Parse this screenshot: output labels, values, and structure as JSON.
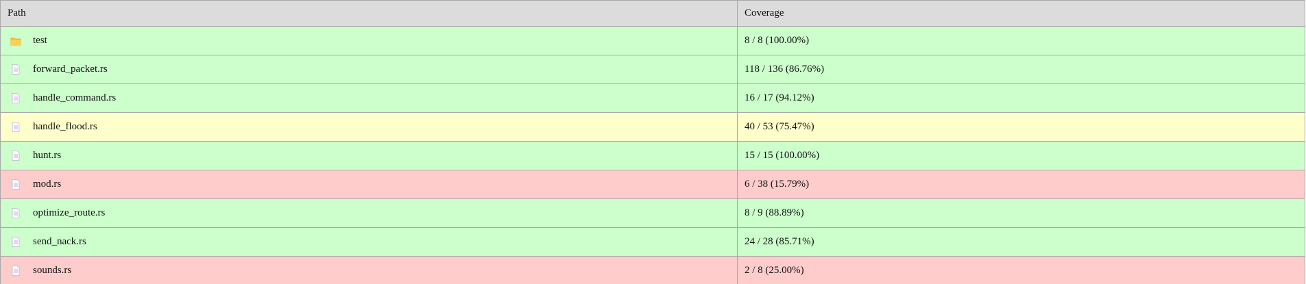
{
  "header": {
    "path_label": "Path",
    "coverage_label": "Coverage"
  },
  "colors": {
    "header_bg": "#dcdcdc",
    "good_bg": "#ccffcc",
    "warn_bg": "#ffffcc",
    "bad_bg": "#ffcccc",
    "folder_icon": "#f7c23a",
    "file_icon": "#c9a0e8"
  },
  "rows": [
    {
      "name": "test",
      "coverage": "8 / 8 (100.00%)",
      "icon": "folder-icon",
      "status": "good"
    },
    {
      "name": "forward_packet.rs",
      "coverage": "118 / 136 (86.76%)",
      "icon": "file-icon",
      "status": "good"
    },
    {
      "name": "handle_command.rs",
      "coverage": "16 / 17 (94.12%)",
      "icon": "file-icon",
      "status": "good"
    },
    {
      "name": "handle_flood.rs",
      "coverage": "40 / 53 (75.47%)",
      "icon": "file-icon",
      "status": "warn"
    },
    {
      "name": "hunt.rs",
      "coverage": "15 / 15 (100.00%)",
      "icon": "file-icon",
      "status": "good"
    },
    {
      "name": "mod.rs",
      "coverage": "6 / 38 (15.79%)",
      "icon": "file-icon",
      "status": "bad"
    },
    {
      "name": "optimize_route.rs",
      "coverage": "8 / 9 (88.89%)",
      "icon": "file-icon",
      "status": "good"
    },
    {
      "name": "send_nack.rs",
      "coverage": "24 / 28 (85.71%)",
      "icon": "file-icon",
      "status": "good"
    },
    {
      "name": "sounds.rs",
      "coverage": "2 / 8 (25.00%)",
      "icon": "file-icon",
      "status": "bad"
    }
  ]
}
